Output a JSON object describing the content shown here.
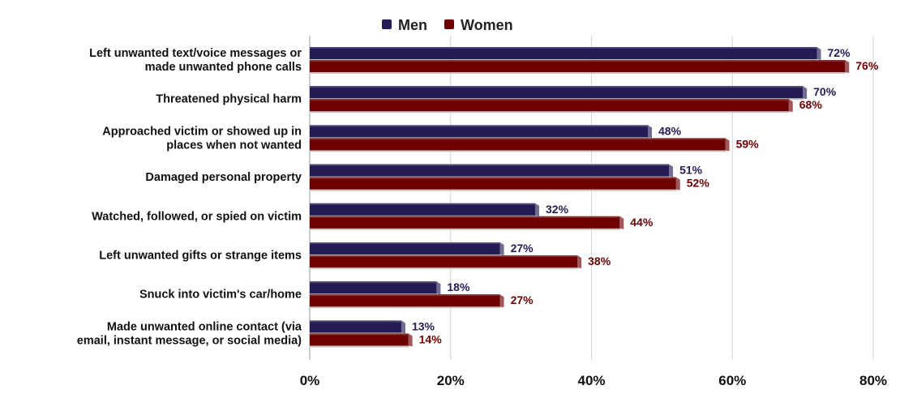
{
  "chart_data": {
    "type": "bar",
    "orientation": "horizontal",
    "categories": [
      [
        "Left unwanted text/voice messages or",
        "made unwanted phone calls"
      ],
      [
        "Threatened physical harm"
      ],
      [
        "Approached victim or showed up in",
        "places when not wanted"
      ],
      [
        "Damaged personal property"
      ],
      [
        "Watched, followed, or spied on victim"
      ],
      [
        "Left unwanted gifts or strange items"
      ],
      [
        "Snuck into victim's car/home"
      ],
      [
        "Made unwanted online contact (via",
        "email, instant message, or social media)"
      ]
    ],
    "series": [
      {
        "name": "Men",
        "color": "#231c55",
        "values": [
          72,
          70,
          48,
          51,
          32,
          27,
          18,
          13
        ]
      },
      {
        "name": "Women",
        "color": "#6d0000",
        "values": [
          76,
          68,
          59,
          52,
          44,
          38,
          27,
          14
        ]
      }
    ],
    "value_suffix": "%",
    "xlim": [
      0,
      80
    ],
    "xticks": [
      "0%",
      "20%",
      "40%",
      "60%",
      "80%"
    ],
    "grid": true,
    "legend_position": "top",
    "title": "",
    "xlabel": "",
    "ylabel": ""
  }
}
